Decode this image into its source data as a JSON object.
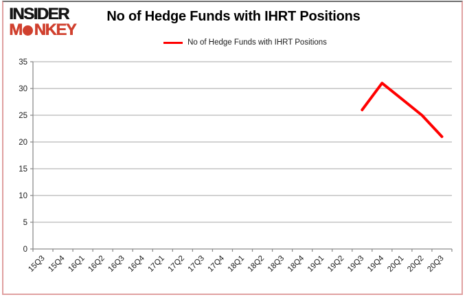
{
  "branding": {
    "line1": "INSIDER",
    "line2": "MONKEY"
  },
  "title": "No of Hedge Funds with IHRT Positions",
  "legend": {
    "label": "No of Hedge Funds with IHRT Positions"
  },
  "chart_data": {
    "type": "line",
    "title": "No of Hedge Funds with IHRT Positions",
    "categories": [
      "15Q3",
      "15Q4",
      "16Q1",
      "16Q2",
      "16Q3",
      "16Q4",
      "17Q1",
      "17Q2",
      "17Q3",
      "17Q4",
      "18Q1",
      "18Q2",
      "18Q3",
      "18Q4",
      "19Q1",
      "19Q2",
      "19Q3",
      "19Q4",
      "20Q1",
      "20Q2",
      "20Q3"
    ],
    "series": [
      {
        "name": "No of Hedge Funds with IHRT Positions",
        "color": "#ff0000",
        "values": [
          null,
          null,
          null,
          null,
          null,
          null,
          null,
          null,
          null,
          null,
          null,
          null,
          null,
          null,
          null,
          null,
          26,
          31,
          28,
          25,
          21
        ]
      }
    ],
    "ylim": [
      0,
      35
    ],
    "ytick_step": 5,
    "yticks": [
      0,
      5,
      10,
      15,
      20,
      25,
      30,
      35
    ],
    "grid": true,
    "legend_position": "top",
    "xlabel": "",
    "ylabel": ""
  },
  "colors": {
    "line": "#ff0000",
    "grid": "#a6a6a6",
    "axis": "#8c8c8c",
    "text": "#1a1a1a",
    "logo_red": "#d0402e",
    "logo_black": "#151515",
    "border_side": "#e0a0a0",
    "border_top": "#6e6e6e",
    "background": "#ffffff"
  }
}
